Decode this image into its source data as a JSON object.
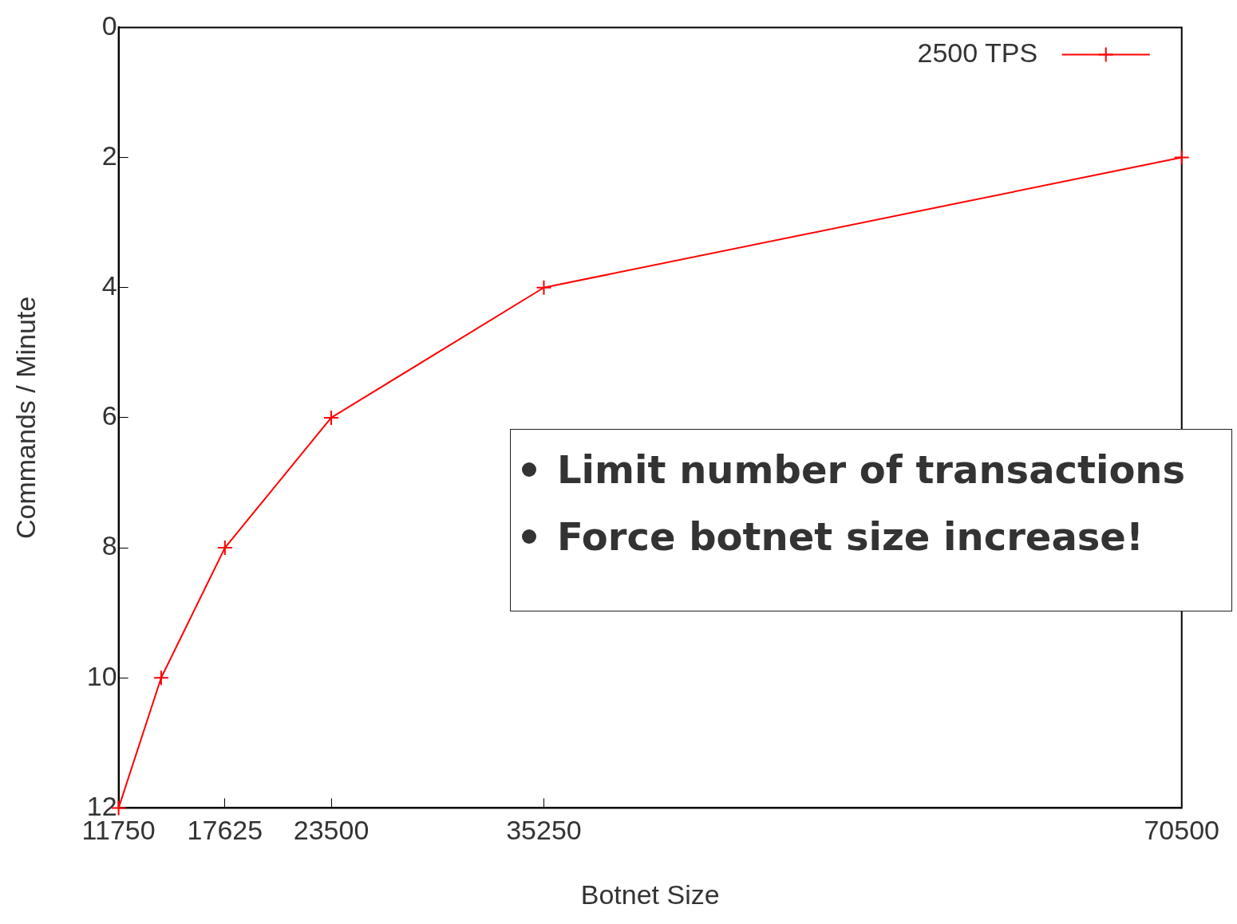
{
  "chart_data": {
    "type": "line",
    "xlabel": "Botnet Size",
    "ylabel": "Commands / Minute",
    "x": [
      11750,
      14100,
      17625,
      23500,
      35250,
      70500
    ],
    "series": [
      {
        "name": "2500 TPS",
        "color": "#ff0000",
        "values": [
          12,
          10,
          8,
          6,
          4,
          2
        ]
      }
    ],
    "xlim": [
      11750,
      70500
    ],
    "xticks": [
      11750,
      17625,
      23500,
      35250,
      70500
    ],
    "ylim": [
      12,
      0
    ],
    "yticks": [
      0,
      2,
      4,
      6,
      8,
      10,
      12
    ],
    "grid": false,
    "legend": "top right",
    "marker": "cross",
    "line_style": "solid",
    "annotations": [
      "Limit number of transactions",
      "Force botnet size increase!"
    ]
  }
}
